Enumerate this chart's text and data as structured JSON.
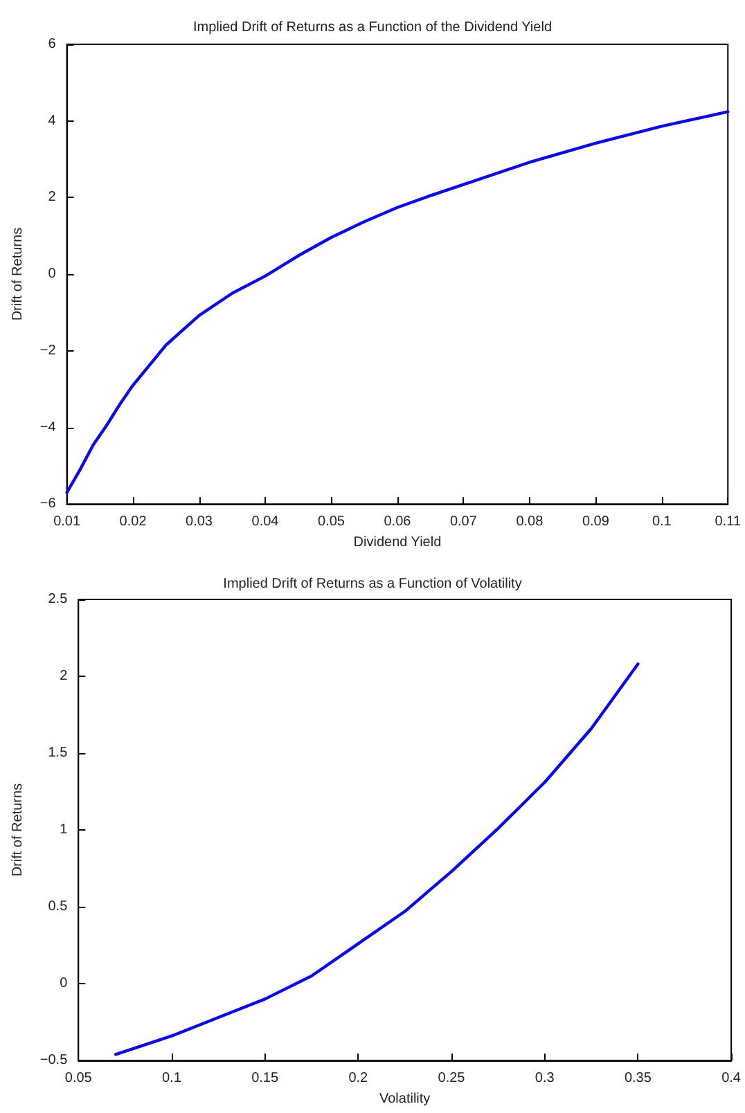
{
  "chart_data": [
    {
      "type": "line",
      "title": "Implied Drift of Returns as a Function of the Dividend Yield",
      "xlabel": "Dividend Yield",
      "ylabel": "Drift of Returns",
      "marker": "none",
      "line_style": "solid",
      "x": [
        0.01,
        0.012,
        0.014,
        0.016,
        0.018,
        0.02,
        0.025,
        0.03,
        0.035,
        0.04,
        0.045,
        0.05,
        0.055,
        0.06,
        0.065,
        0.07,
        0.08,
        0.09,
        0.1,
        0.11
      ],
      "series": [
        {
          "color": "#0a0ae6",
          "values": [
            -5.7,
            -5.1,
            -4.45,
            -3.95,
            -3.4,
            -2.9,
            -1.85,
            -1.08,
            -0.5,
            -0.05,
            0.48,
            0.96,
            1.37,
            1.74,
            2.05,
            2.34,
            2.92,
            3.42,
            3.86,
            4.24
          ]
        }
      ],
      "xlim": [
        0.01,
        0.11
      ],
      "xticks": [
        0.01,
        0.02,
        0.03,
        0.04,
        0.05,
        0.06,
        0.07,
        0.08,
        0.09,
        0.1,
        0.11
      ],
      "ylim": [
        -6,
        6
      ],
      "yticks": [
        {
          "value": -6,
          "label": "−6"
        },
        {
          "value": -4,
          "label": "−4"
        },
        {
          "value": -2,
          "label": "−2"
        },
        0,
        2,
        4,
        6
      ]
    },
    {
      "type": "line",
      "title": "Implied Drift of Returns as a Function of Volatility",
      "xlabel": "Volatility",
      "ylabel": "Drift of Returns",
      "marker": "none",
      "line_style": "solid",
      "x": [
        0.07,
        0.1,
        0.125,
        0.15,
        0.175,
        0.2,
        0.225,
        0.25,
        0.275,
        0.3,
        0.325,
        0.35
      ],
      "series": [
        {
          "color": "#0a0ae6",
          "values": [
            -0.46,
            -0.34,
            -0.22,
            -0.1,
            0.05,
            0.26,
            0.47,
            0.73,
            1.01,
            1.31,
            1.66,
            2.08
          ]
        }
      ],
      "xlim": [
        0.05,
        0.4
      ],
      "xticks": [
        0.05,
        0.1,
        0.15,
        0.2,
        0.25,
        0.3,
        0.35,
        0.4
      ],
      "ylim": [
        -0.5,
        2.5
      ],
      "yticks": [
        {
          "value": -0.5,
          "label": "−0.5"
        },
        0,
        0.5,
        1,
        1.5,
        2,
        2.5
      ]
    }
  ]
}
